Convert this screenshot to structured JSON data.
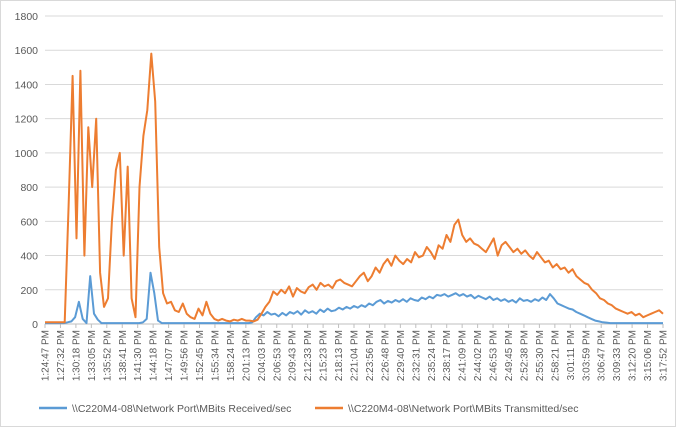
{
  "chart_data": {
    "type": "line",
    "title": "",
    "xlabel": "",
    "ylabel": "",
    "ylim": [
      0,
      1800
    ],
    "yticks": [
      0,
      200,
      400,
      600,
      800,
      1000,
      1200,
      1400,
      1600,
      1800
    ],
    "grid": "horizontal",
    "legend_position": "bottom",
    "x_tick_labels": [
      "1:24:47 PM",
      "1:27:32 PM",
      "1:30:18 PM",
      "1:33:05 PM",
      "1:35:52 PM",
      "1:38:41 PM",
      "1:41:30 PM",
      "1:44:18 PM",
      "1:47:07 PM",
      "1:49:56 PM",
      "1:52:45 PM",
      "1:55:34 PM",
      "1:58:24 PM",
      "2:01:13 PM",
      "2:04:03 PM",
      "2:06:53 PM",
      "2:09:43 PM",
      "2:12:33 PM",
      "2:15:23 PM",
      "2:18:13 PM",
      "2:21:04 PM",
      "2:23:56 PM",
      "2:26:48 PM",
      "2:29:40 PM",
      "2:32:31 PM",
      "2:35:24 PM",
      "2:38:17 PM",
      "2:41:09 PM",
      "2:44:02 PM",
      "2:46:53 PM",
      "2:49:45 PM",
      "2:52:38 PM",
      "2:55:30 PM",
      "2:58:21 PM",
      "3:01:11 PM",
      "3:03:59 PM",
      "3:06:47 PM",
      "3:09:33 PM",
      "3:12:20 PM",
      "3:15:06 PM",
      "3:17:52 PM"
    ],
    "series": [
      {
        "name": "\\\\C220M4-08\\Network Port\\MBits Received/sec",
        "color": "#5b9bd5",
        "values": [
          5,
          5,
          5,
          5,
          5,
          5,
          10,
          15,
          40,
          130,
          30,
          5,
          280,
          60,
          25,
          5,
          5,
          5,
          5,
          5,
          5,
          5,
          5,
          5,
          5,
          5,
          10,
          30,
          300,
          180,
          20,
          5,
          5,
          5,
          5,
          5,
          5,
          5,
          5,
          5,
          5,
          5,
          5,
          5,
          5,
          5,
          5,
          5,
          5,
          5,
          5,
          5,
          5,
          5,
          5,
          10,
          40,
          60,
          50,
          70,
          55,
          60,
          45,
          65,
          50,
          70,
          60,
          75,
          55,
          80,
          65,
          75,
          60,
          85,
          70,
          90,
          75,
          80,
          95,
          85,
          100,
          90,
          105,
          95,
          110,
          100,
          120,
          110,
          130,
          140,
          120,
          135,
          125,
          140,
          130,
          145,
          130,
          150,
          140,
          135,
          155,
          145,
          160,
          150,
          170,
          165,
          175,
          160,
          170,
          180,
          165,
          175,
          160,
          170,
          150,
          165,
          155,
          145,
          160,
          140,
          150,
          135,
          145,
          130,
          140,
          125,
          150,
          135,
          140,
          130,
          145,
          135,
          155,
          140,
          175,
          150,
          120,
          110,
          100,
          90,
          85,
          70,
          60,
          50,
          40,
          30,
          20,
          15,
          10,
          8,
          5,
          5,
          5,
          5,
          5,
          5,
          5,
          5,
          5,
          5,
          5,
          5,
          5,
          5,
          5
        ]
      },
      {
        "name": "\\\\C220M4-08\\Network Port\\MBits Transmitted/sec",
        "color": "#ed7d31",
        "values": [
          10,
          10,
          10,
          10,
          10,
          10,
          690,
          1450,
          500,
          1480,
          400,
          1150,
          800,
          1200,
          300,
          100,
          150,
          600,
          900,
          1000,
          400,
          920,
          150,
          40,
          800,
          1100,
          1250,
          1580,
          1300,
          450,
          180,
          120,
          130,
          80,
          70,
          120,
          60,
          40,
          30,
          90,
          50,
          130,
          60,
          30,
          20,
          30,
          20,
          15,
          25,
          20,
          30,
          20,
          20,
          15,
          25,
          60,
          100,
          130,
          190,
          170,
          200,
          180,
          220,
          160,
          210,
          190,
          180,
          215,
          230,
          200,
          240,
          220,
          230,
          210,
          250,
          260,
          240,
          230,
          220,
          250,
          280,
          300,
          250,
          280,
          330,
          300,
          350,
          380,
          340,
          400,
          370,
          350,
          380,
          360,
          420,
          390,
          400,
          450,
          420,
          380,
          460,
          440,
          520,
          480,
          580,
          610,
          520,
          480,
          500,
          470,
          460,
          440,
          420,
          460,
          500,
          400,
          460,
          480,
          450,
          420,
          440,
          410,
          430,
          400,
          380,
          420,
          390,
          360,
          370,
          330,
          350,
          320,
          330,
          300,
          320,
          280,
          260,
          240,
          230,
          200,
          180,
          150,
          140,
          120,
          110,
          90,
          80,
          70,
          60,
          70,
          50,
          60,
          40,
          50,
          60,
          70,
          80,
          60
        ]
      }
    ]
  }
}
